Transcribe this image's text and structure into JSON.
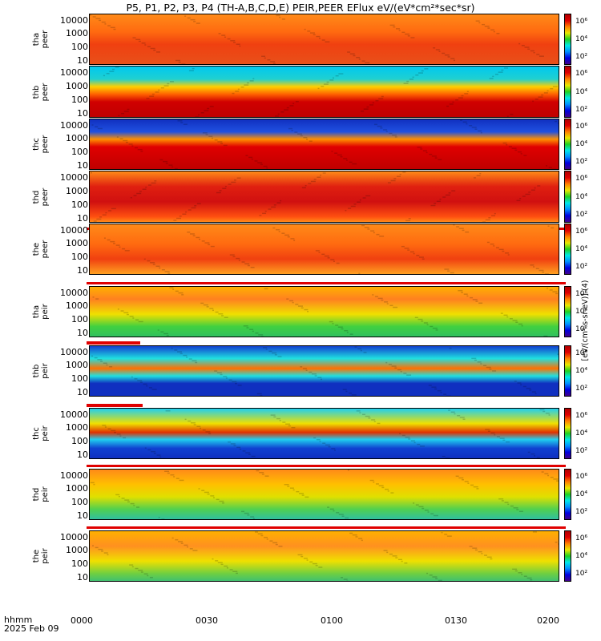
{
  "title": "P5, P1, P2, P3, P4 (TH-A,B,C,D,E) PEIR,PEER EFlux eV/(eV*cm²*sec*sr)",
  "colorbar_unit": "[eV/(cm²-s-sr-eV)] (4)",
  "footer": {
    "line1": "hhmm",
    "line2": "2025 Feb 09"
  },
  "x_ticks": [
    "0000",
    "0030",
    "0100",
    "0130",
    "0200"
  ],
  "y_ticks": [
    "10000",
    "1000",
    "100",
    "10"
  ],
  "colorbar_ticks": [
    "10⁶",
    "10⁴",
    "10²"
  ],
  "colors": {
    "red_bar": "#e00000",
    "background_high": "#e8451f"
  },
  "chart_data": {
    "type": "heatmap",
    "x_range": [
      "0000",
      "0200"
    ],
    "y_scale": "log",
    "y_range": [
      5,
      30000
    ],
    "z_scale": "log",
    "panels": [
      {
        "probe": "tha",
        "species": "peer"
      },
      {
        "probe": "thb",
        "species": "peer"
      },
      {
        "probe": "thc",
        "species": "peer"
      },
      {
        "probe": "thd",
        "species": "peer"
      },
      {
        "probe": "the",
        "species": "peer"
      },
      {
        "probe": "tha",
        "species": "peir"
      },
      {
        "probe": "thb",
        "species": "peir"
      },
      {
        "probe": "thc",
        "species": "peir"
      },
      {
        "probe": "thd",
        "species": "peir"
      },
      {
        "probe": "the",
        "species": "peir"
      }
    ]
  }
}
